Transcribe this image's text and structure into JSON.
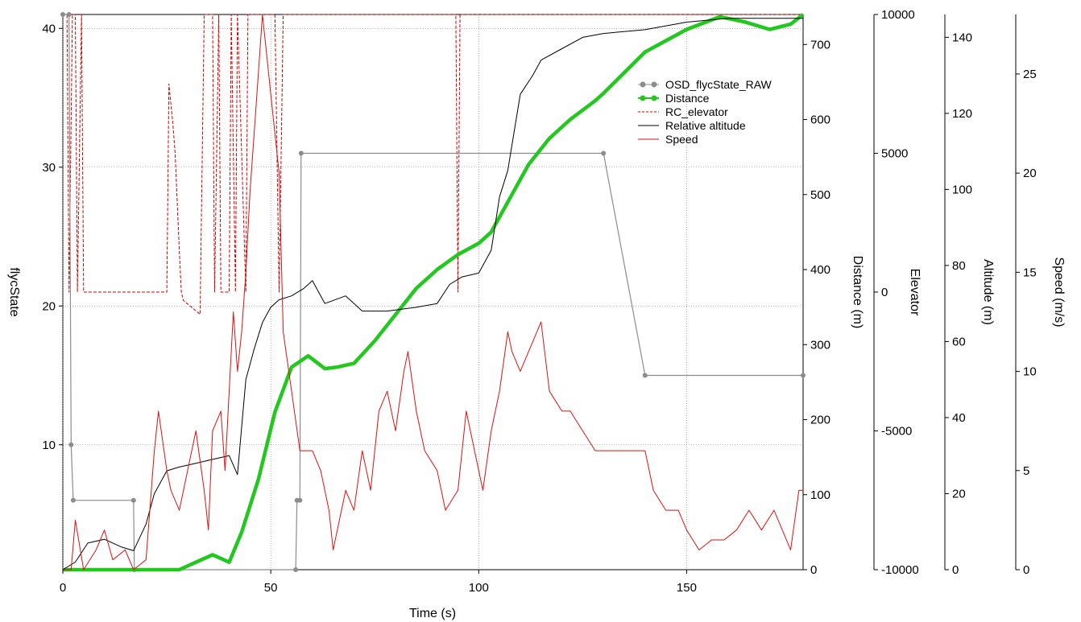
{
  "chart_data": {
    "type": "line",
    "xlabel": "Time (s)",
    "xlim": [
      0,
      178
    ],
    "x_ticks": [
      0,
      50,
      100,
      150
    ],
    "grid": true,
    "legend_position": "top-right",
    "axes": {
      "left": {
        "label": "flycState",
        "ylim": [
          1,
          41
        ],
        "ticks": [
          10,
          20,
          30,
          40
        ]
      },
      "distance": {
        "label": "Distance (m)",
        "ylim": [
          0,
          740
        ],
        "ticks": [
          0,
          100,
          200,
          300,
          400,
          500,
          600,
          700
        ]
      },
      "elevator": {
        "label": "Elevator",
        "ylim": [
          -10000,
          10000
        ],
        "ticks": [
          -10000,
          -5000,
          0,
          5000,
          10000
        ]
      },
      "altitude": {
        "label": "Altitude (m)",
        "ylim": [
          0,
          146
        ],
        "ticks": [
          0,
          20,
          40,
          60,
          80,
          100,
          120,
          140
        ]
      },
      "speed": {
        "label": "Speed (m/s)",
        "ylim": [
          0,
          28
        ],
        "ticks": [
          0,
          5,
          10,
          15,
          20,
          25
        ]
      }
    },
    "series": [
      {
        "name": "OSD_flycState_RAW",
        "axis": "left",
        "color": "#8c8c8c",
        "style": "solid-markers",
        "x": [
          0,
          1.5,
          2,
          2.5,
          17,
          17.2,
          56,
          56.3,
          57,
          57.3,
          130,
          140,
          178
        ],
        "y": [
          41,
          41,
          10,
          6,
          6,
          1,
          1,
          6,
          6,
          31,
          31,
          15,
          15
        ]
      },
      {
        "name": "Distance",
        "axis": "distance",
        "color": "#22c81e",
        "style": "thick",
        "x": [
          0,
          28,
          32,
          36,
          40,
          43,
          47,
          51,
          55,
          59,
          63,
          66,
          70,
          75,
          80,
          85,
          90,
          95,
          100,
          103,
          107,
          112,
          117,
          122,
          128,
          130,
          140,
          150,
          158,
          164,
          170,
          175,
          178
        ],
        "y": [
          0,
          0,
          10,
          20,
          10,
          50,
          120,
          210,
          270,
          285,
          268,
          270,
          275,
          305,
          340,
          375,
          400,
          420,
          435,
          450,
          490,
          540,
          575,
          600,
          625,
          635,
          690,
          720,
          737,
          730,
          720,
          727,
          740
        ]
      },
      {
        "name": "RC_elevator",
        "axis": "elevator",
        "color": "#cc0000",
        "style": "dashed",
        "x": [
          0,
          1,
          1.5,
          2.3,
          3,
          3.5,
          4.5,
          5,
          25,
          25.5,
          26.5,
          27,
          28,
          28.5,
          29,
          33,
          34,
          36,
          36.5,
          37.5,
          38,
          40,
          40.5,
          41.5,
          42,
          44,
          44.5,
          50,
          51,
          52,
          53,
          94.5,
          95,
          95.5,
          178
        ],
        "y": [
          10000,
          10000,
          0,
          10000,
          10000,
          0,
          10000,
          0,
          0,
          7500,
          6000,
          5000,
          1500,
          0,
          -300,
          -800,
          10000,
          10000,
          0,
          10000,
          0,
          0,
          10000,
          0,
          10000,
          0,
          10000,
          10000,
          10000,
          0,
          10000,
          10000,
          0,
          10000,
          10000
        ]
      },
      {
        "name": "Relative altitude",
        "axis": "altitude",
        "color": "#000000",
        "style": "solid",
        "x": [
          0,
          3,
          6,
          10,
          14,
          17,
          20,
          22,
          25,
          28,
          32,
          36,
          40,
          42,
          44,
          46,
          48,
          50,
          52,
          55,
          58,
          60,
          63,
          68,
          72,
          78,
          85,
          90,
          93,
          96,
          100,
          103,
          105,
          107,
          110,
          113,
          115,
          120,
          125,
          130,
          140,
          150,
          160,
          170,
          178
        ],
        "y": [
          0,
          2,
          7,
          8,
          6,
          5,
          12,
          20,
          26,
          27,
          28,
          29,
          30,
          25,
          50,
          58,
          65,
          69,
          71,
          72,
          74,
          76,
          70,
          72,
          68,
          68,
          69,
          70,
          75,
          77,
          78,
          84,
          98,
          105,
          125,
          130,
          134,
          137,
          140,
          141,
          142,
          144,
          145,
          145,
          145
        ]
      },
      {
        "name": "Speed",
        "axis": "speed",
        "color": "#dd1111",
        "style": "solid",
        "x": [
          0,
          2,
          3,
          5,
          8,
          10,
          12,
          15,
          17,
          20,
          22,
          23,
          25,
          26,
          28,
          30,
          32,
          34,
          35,
          36,
          38,
          39,
          40,
          41,
          42,
          43,
          44,
          45,
          47,
          48,
          49,
          50,
          52,
          53,
          55,
          57,
          60,
          62,
          64,
          65,
          68,
          70,
          72,
          74,
          76,
          78,
          80,
          82,
          83,
          85,
          87,
          90,
          92,
          95,
          97,
          99,
          101,
          103,
          105,
          107,
          108,
          110,
          112,
          114,
          115,
          117,
          120,
          122,
          125,
          128,
          130,
          140,
          142,
          145,
          148,
          150,
          153,
          156,
          159,
          162,
          165,
          168,
          171,
          173,
          175,
          177,
          178
        ],
        "y": [
          0,
          0,
          2.5,
          0,
          1,
          2,
          0.5,
          1,
          0,
          0.5,
          6,
          8,
          5,
          4,
          3,
          5,
          7,
          4,
          2,
          7,
          8,
          5,
          9,
          13,
          10,
          12,
          15,
          19,
          25,
          28,
          26,
          24,
          20,
          12,
          9,
          6,
          6,
          5,
          3,
          1,
          4,
          3,
          6,
          4,
          8,
          9,
          7,
          10,
          11,
          8,
          6,
          5,
          3,
          4,
          8,
          6,
          4,
          7,
          9,
          12,
          11,
          10,
          11,
          12,
          12.5,
          9,
          8,
          8,
          7,
          6,
          6,
          6,
          4,
          3,
          3,
          2,
          1,
          1.5,
          1.5,
          2,
          3,
          2,
          3,
          2,
          1,
          4,
          4
        ]
      }
    ]
  }
}
